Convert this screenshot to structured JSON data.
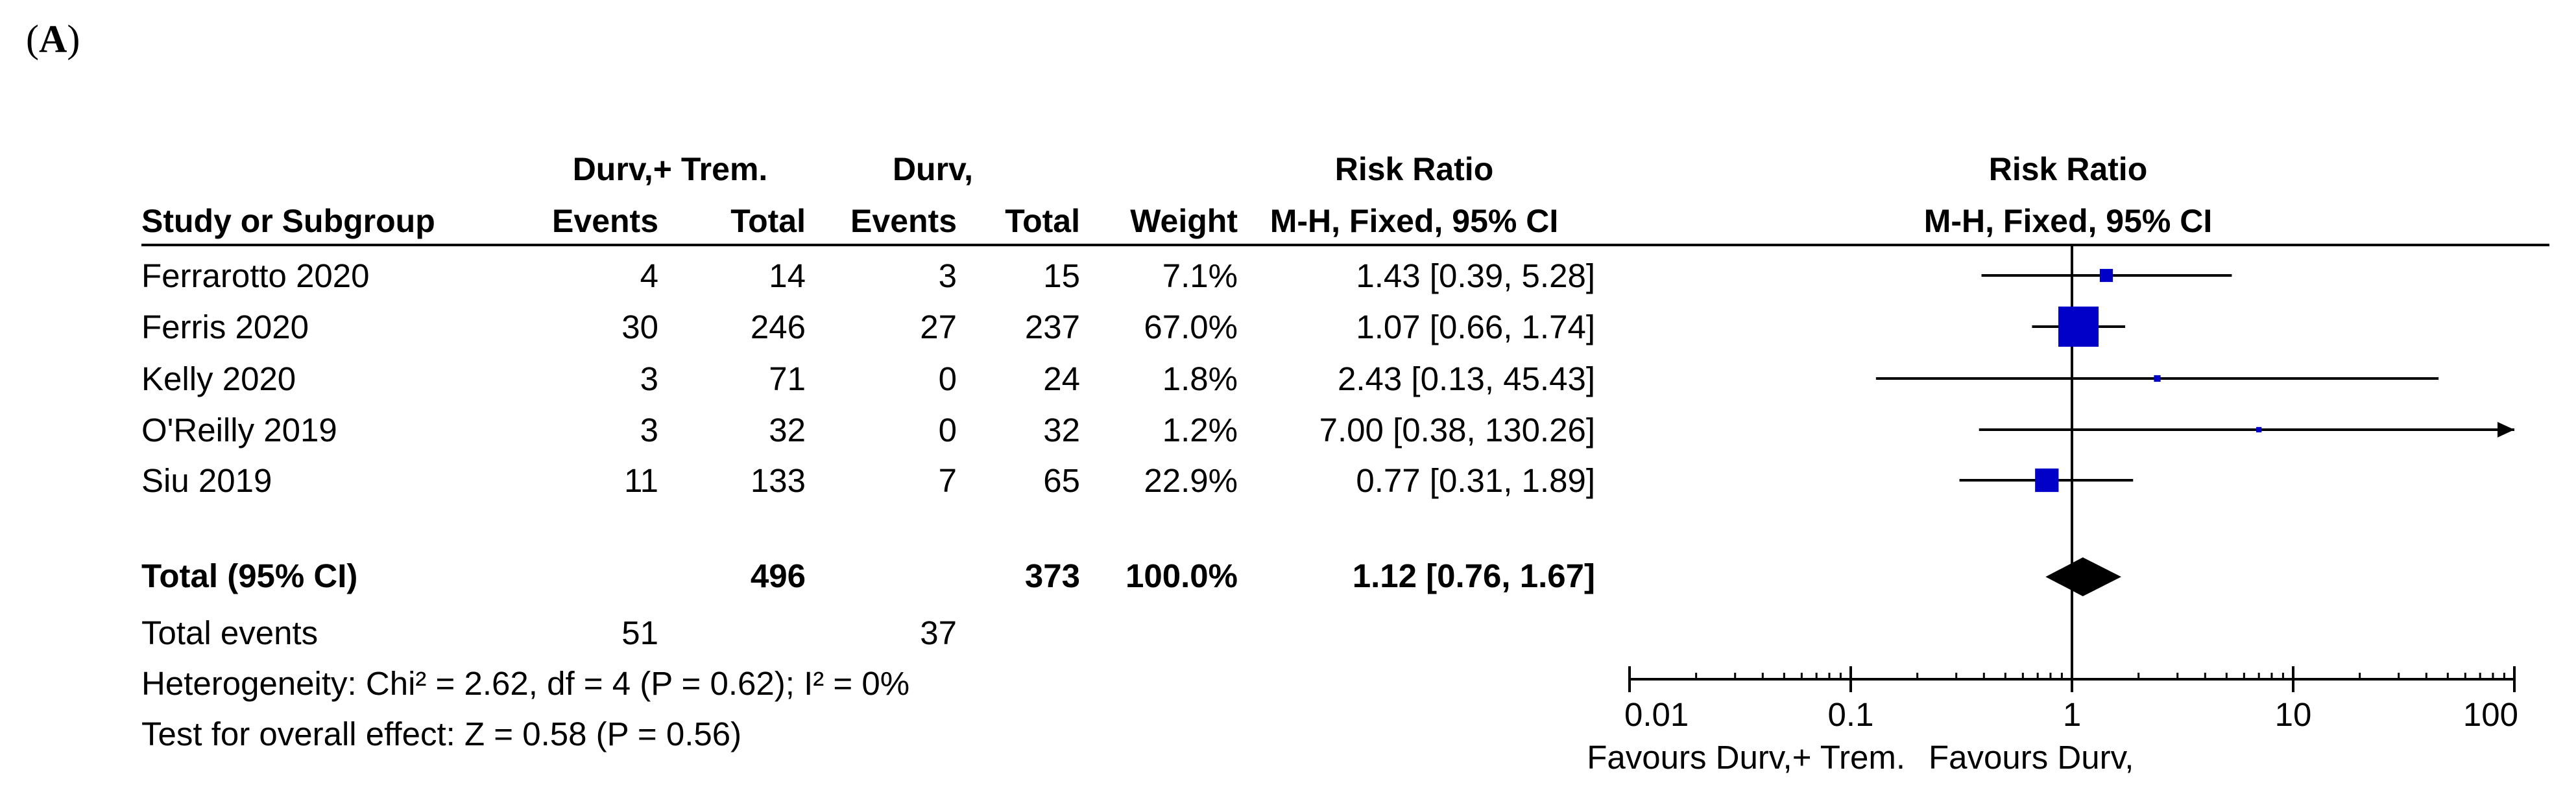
{
  "panel_label": "A",
  "table": {
    "group_headers": {
      "experimental": "Durv,+ Trem.",
      "control": "Durv,",
      "risk_ratio_text": "Risk Ratio",
      "risk_ratio_plot": "Risk Ratio"
    },
    "columns": {
      "study": "Study or Subgroup",
      "exp_events": "Events",
      "exp_total": "Total",
      "ctl_events": "Events",
      "ctl_total": "Total",
      "weight": "Weight",
      "method_text": "M-H, Fixed, 95% CI",
      "method_plot": "M-H, Fixed, 95% CI"
    },
    "total_row": {
      "label": "Total (95% CI)",
      "exp_total": "496",
      "ctl_total": "373",
      "weight": "100.0%",
      "ci": "1.12 [0.76, 1.67]"
    },
    "total_events": {
      "label": "Total events",
      "exp": "51",
      "ctl": "37"
    },
    "heterogeneity": "Heterogeneity: Chi² = 2.62, df = 4 (P = 0.62); I² = 0%",
    "overall_effect": "Test for overall effect: Z = 0.58 (P = 0.56)",
    "favours_left": "Favours Durv,+ Trem.",
    "favours_right": "Favours Durv,"
  },
  "chart_data": {
    "type": "forest",
    "scale": "log",
    "xlim": [
      0.01,
      100
    ],
    "ticks": [
      0.01,
      0.1,
      1,
      10,
      100
    ],
    "tick_labels": [
      "0.01",
      "0.1",
      "1",
      "10",
      "100"
    ],
    "reference_line": 1,
    "studies": [
      {
        "name": "Ferrarotto 2020",
        "exp_events": "4",
        "exp_total": "14",
        "ctl_events": "3",
        "ctl_total": "15",
        "weight": "7.1%",
        "ci": "1.43 [0.39, 5.28]",
        "rr": 1.43,
        "lower": 0.39,
        "upper": 5.28,
        "w": 7.1
      },
      {
        "name": "Ferris 2020",
        "exp_events": "30",
        "exp_total": "246",
        "ctl_events": "27",
        "ctl_total": "237",
        "weight": "67.0%",
        "ci": "1.07 [0.66, 1.74]",
        "rr": 1.07,
        "lower": 0.66,
        "upper": 1.74,
        "w": 67.0
      },
      {
        "name": "Kelly 2020",
        "exp_events": "3",
        "exp_total": "71",
        "ctl_events": "0",
        "ctl_total": "24",
        "weight": "1.8%",
        "ci": "2.43 [0.13, 45.43]",
        "rr": 2.43,
        "lower": 0.13,
        "upper": 45.43,
        "w": 1.8
      },
      {
        "name": "O'Reilly 2019",
        "exp_events": "3",
        "exp_total": "32",
        "ctl_events": "0",
        "ctl_total": "32",
        "weight": "1.2%",
        "ci": "7.00 [0.38, 130.26]",
        "rr": 7.0,
        "lower": 0.38,
        "upper": 130.26,
        "w": 1.2
      },
      {
        "name": "Siu 2019",
        "exp_events": "11",
        "exp_total": "133",
        "ctl_events": "7",
        "ctl_total": "65",
        "weight": "22.9%",
        "ci": "0.77 [0.31, 1.89]",
        "rr": 0.77,
        "lower": 0.31,
        "upper": 1.89,
        "w": 22.9
      }
    ],
    "pooled": {
      "rr": 1.12,
      "lower": 0.76,
      "upper": 1.67
    },
    "colors": {
      "box": "#0000c8",
      "diamond": "#000000",
      "line": "#000000"
    }
  }
}
